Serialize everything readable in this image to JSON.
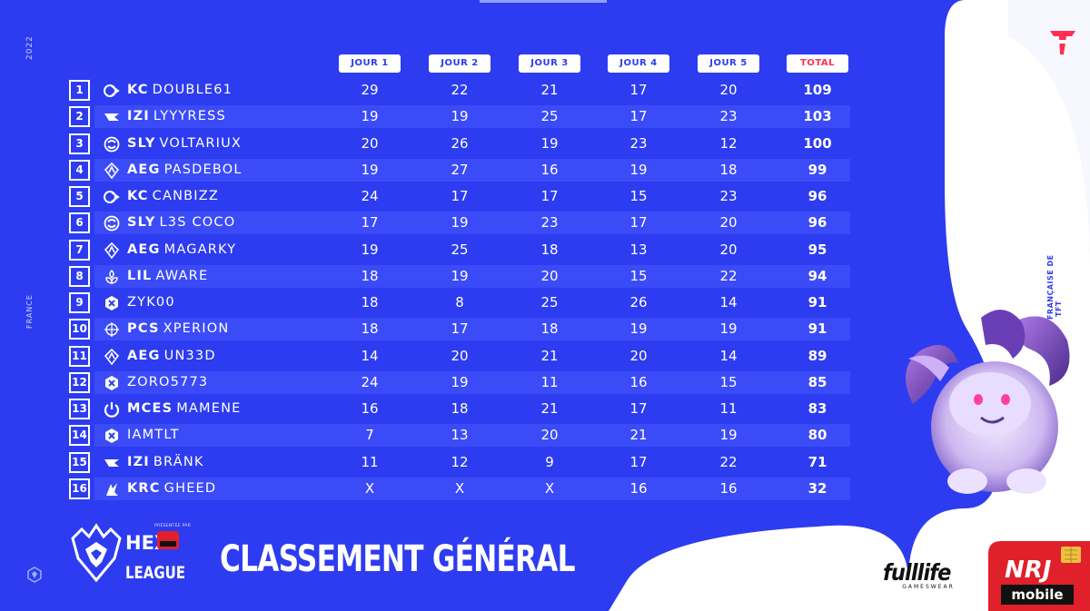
{
  "side": {
    "year": "2022",
    "country": "FRANCE"
  },
  "tagline": "LA LIGUE FRANÇAISE DE TFT",
  "columns": [
    "JOUR 1",
    "JOUR 2",
    "JOUR 3",
    "JOUR 4",
    "JOUR 5",
    "TOTAL"
  ],
  "rows": [
    {
      "rank": "1",
      "tag": "KC",
      "name": "DOUBLE61",
      "icon": "kc-team-icon",
      "days": [
        "29",
        "22",
        "21",
        "17",
        "20"
      ],
      "total": "109"
    },
    {
      "rank": "2",
      "tag": "IZI",
      "name": "LYYYRESS",
      "icon": "izi-team-icon",
      "days": [
        "19",
        "19",
        "25",
        "17",
        "23"
      ],
      "total": "103"
    },
    {
      "rank": "3",
      "tag": "SLY",
      "name": "VOLTARIUX",
      "icon": "sly-team-icon",
      "days": [
        "20",
        "26",
        "19",
        "23",
        "12"
      ],
      "total": "100"
    },
    {
      "rank": "4",
      "tag": "AEG",
      "name": "PASDEBOL",
      "icon": "aeg-team-icon",
      "days": [
        "19",
        "27",
        "16",
        "19",
        "18"
      ],
      "total": "99"
    },
    {
      "rank": "5",
      "tag": "KC",
      "name": "CANBIZZ",
      "icon": "kc-team-icon",
      "days": [
        "24",
        "17",
        "17",
        "15",
        "23"
      ],
      "total": "96"
    },
    {
      "rank": "6",
      "tag": "SLY",
      "name": "L3S COCO",
      "icon": "sly-team-icon",
      "days": [
        "17",
        "19",
        "23",
        "17",
        "20"
      ],
      "total": "96"
    },
    {
      "rank": "7",
      "tag": "AEG",
      "name": "MAGARKY",
      "icon": "aeg-team-icon",
      "days": [
        "19",
        "25",
        "18",
        "13",
        "20"
      ],
      "total": "95"
    },
    {
      "rank": "8",
      "tag": "LIL",
      "name": "AWARE",
      "icon": "lil-team-icon",
      "days": [
        "18",
        "19",
        "20",
        "15",
        "22"
      ],
      "total": "94"
    },
    {
      "rank": "9",
      "tag": "",
      "name": "ZYK00",
      "icon": "tft-hex-icon",
      "days": [
        "18",
        "8",
        "25",
        "26",
        "14"
      ],
      "total": "91"
    },
    {
      "rank": "10",
      "tag": "PCS",
      "name": "XPERION",
      "icon": "pcs-team-icon",
      "days": [
        "18",
        "17",
        "18",
        "19",
        "19"
      ],
      "total": "91"
    },
    {
      "rank": "11",
      "tag": "AEG",
      "name": "UN33D",
      "icon": "aeg-team-icon",
      "days": [
        "14",
        "20",
        "21",
        "20",
        "14"
      ],
      "total": "89"
    },
    {
      "rank": "12",
      "tag": "",
      "name": "ZORO5773",
      "icon": "tft-hex-icon",
      "days": [
        "24",
        "19",
        "11",
        "16",
        "15"
      ],
      "total": "85"
    },
    {
      "rank": "13",
      "tag": "MCES",
      "name": "MAMENE",
      "icon": "mces-team-icon",
      "days": [
        "16",
        "18",
        "21",
        "17",
        "11"
      ],
      "total": "83"
    },
    {
      "rank": "14",
      "tag": "",
      "name": "IAMTLT",
      "icon": "tft-hex-icon",
      "days": [
        "7",
        "13",
        "20",
        "21",
        "19"
      ],
      "total": "80"
    },
    {
      "rank": "15",
      "tag": "IZI",
      "name": "BRÄNK",
      "icon": "izi-team-icon",
      "days": [
        "11",
        "12",
        "9",
        "17",
        "22"
      ],
      "total": "71"
    },
    {
      "rank": "16",
      "tag": "KRC",
      "name": "GHEED",
      "icon": "krc-team-icon",
      "days": [
        "X",
        "X",
        "X",
        "16",
        "16"
      ],
      "total": "32"
    }
  ],
  "branding": {
    "presented_by": "PRÉSENTÉE PAR",
    "hex_line1": "HEX",
    "hex_line2": "LEAGUE",
    "title": "CLASSEMENT GÉNÉRAL",
    "fulllife": "fulllife",
    "fulllife_sub": "GAMESWEAR",
    "nrj_logo": "NRJ",
    "nrj_mobile": "mobile"
  },
  "colors": {
    "background": "#2d3cf0",
    "row_alt": "#4958ff",
    "accent_red": "#ff2e52",
    "white": "#ffffff"
  }
}
